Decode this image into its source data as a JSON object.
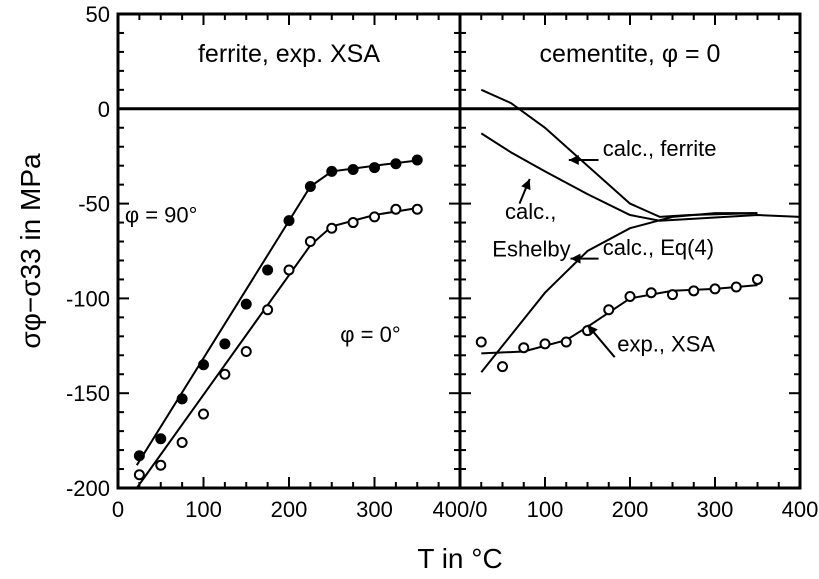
{
  "chart_data": [
    {
      "type": "line",
      "panel": "left",
      "title": "ferrite,  exp. XSA",
      "xlabel": "T in °C",
      "ylabel": "σφ−σ33  in MPa",
      "xlim": [
        0,
        400
      ],
      "ylim": [
        -200,
        50
      ],
      "xticks": [
        "0",
        "100",
        "200",
        "300"
      ],
      "yticks": [
        "50",
        "0",
        "-50",
        "-100",
        "-150",
        "-200"
      ],
      "zero_line": true,
      "series": [
        {
          "name": "φ = 90°",
          "marker": "filled-circle",
          "color": "#000000",
          "points": [
            [
              25,
              -183
            ],
            [
              50,
              -174
            ],
            [
              75,
              -153
            ],
            [
              100,
              -135
            ],
            [
              125,
              -124
            ],
            [
              150,
              -103
            ],
            [
              175,
              -85
            ],
            [
              200,
              -59
            ],
            [
              225,
              -41
            ],
            [
              250,
              -33
            ],
            [
              275,
              -32
            ],
            [
              300,
              -31
            ],
            [
              325,
              -29
            ],
            [
              350,
              -27
            ]
          ],
          "fit": [
            [
              22,
              -188
            ],
            [
              225,
              -41
            ],
            [
              250,
              -33
            ],
            [
              300,
              -30
            ],
            [
              355,
              -27
            ]
          ]
        },
        {
          "name": "φ = 0°",
          "marker": "open-circle",
          "color": "#000000",
          "points": [
            [
              25,
              -193
            ],
            [
              50,
              -188
            ],
            [
              75,
              -176
            ],
            [
              100,
              -161
            ],
            [
              125,
              -140
            ],
            [
              150,
              -128
            ],
            [
              175,
              -106
            ],
            [
              200,
              -85
            ],
            [
              225,
              -70
            ],
            [
              250,
              -63
            ],
            [
              275,
              -60
            ],
            [
              300,
              -57
            ],
            [
              325,
              -53
            ],
            [
              350,
              -53
            ]
          ],
          "fit": [
            [
              22,
              -200
            ],
            [
              225,
              -72
            ],
            [
              250,
              -62
            ],
            [
              300,
              -56
            ],
            [
              355,
              -52
            ]
          ]
        }
      ],
      "annotations": [
        {
          "text": "φ = 90°",
          "x": 8,
          "y": -60
        },
        {
          "text": "φ = 0°",
          "x": 260,
          "y": -123
        }
      ]
    },
    {
      "type": "line",
      "panel": "right",
      "title": "cementite,  φ = 0",
      "xlim": [
        0,
        400
      ],
      "ylim": [
        -200,
        50
      ],
      "xticks": [
        "100",
        "200",
        "300",
        "400"
      ],
      "first_tick_label": "400/0",
      "zero_line": true,
      "series": [
        {
          "name": "calc., ferrite",
          "marker": "none",
          "points": [
            [
              25,
              10
            ],
            [
              60,
              3
            ],
            [
              100,
              -10
            ],
            [
              150,
              -30
            ],
            [
              200,
              -50
            ],
            [
              235,
              -57
            ],
            [
              270,
              -56
            ],
            [
              350,
              -55
            ]
          ]
        },
        {
          "name": "calc., Eshelby",
          "marker": "none",
          "points": [
            [
              25,
              -13
            ],
            [
              60,
              -23
            ],
            [
              100,
              -33
            ],
            [
              150,
              -45
            ],
            [
              200,
              -56
            ],
            [
              235,
              -59
            ],
            [
              275,
              -58
            ],
            [
              350,
              -56
            ],
            [
              400,
              -57
            ]
          ]
        },
        {
          "name": "calc., Eq(4)",
          "marker": "none",
          "points": [
            [
              25,
              -139
            ],
            [
              50,
              -125
            ],
            [
              100,
              -97
            ],
            [
              150,
              -75
            ],
            [
              200,
              -63
            ],
            [
              250,
              -57
            ],
            [
              300,
              -55
            ],
            [
              350,
              -55
            ]
          ]
        },
        {
          "name": "exp., XSA",
          "marker": "open-circle",
          "points": [
            [
              25,
              -123
            ],
            [
              50,
              -136
            ],
            [
              75,
              -126
            ],
            [
              100,
              -124
            ],
            [
              125,
              -123
            ],
            [
              150,
              -117
            ],
            [
              175,
              -106
            ],
            [
              200,
              -99
            ],
            [
              225,
              -97
            ],
            [
              250,
              -98
            ],
            [
              275,
              -96
            ],
            [
              300,
              -95
            ],
            [
              325,
              -94
            ],
            [
              350,
              -90
            ]
          ],
          "fit": [
            [
              25,
              -129
            ],
            [
              75,
              -128
            ],
            [
              125,
              -122
            ],
            [
              150,
              -115
            ],
            [
              200,
              -100
            ],
            [
              250,
              -96
            ],
            [
              300,
              -95
            ],
            [
              350,
              -93
            ]
          ]
        }
      ],
      "annotations": [
        {
          "text": "calc., ferrite",
          "x": 168,
          "y": -25
        },
        {
          "text": "calc.,",
          "x": 53,
          "y": -58
        },
        {
          "text": "Eshelby",
          "x": 38,
          "y": -78
        },
        {
          "text": "calc., Eq(4)",
          "x": 168,
          "y": -77
        },
        {
          "text": "exp., XSA",
          "x": 185,
          "y": -128
        }
      ]
    }
  ]
}
